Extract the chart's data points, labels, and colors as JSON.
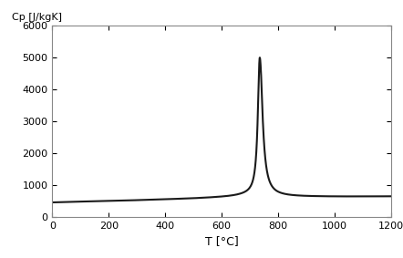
{
  "ylabel": "Cp [J/kgK]",
  "xlabel": "T [°C]",
  "xlim": [
    0,
    1200
  ],
  "ylim": [
    0,
    6000
  ],
  "xticks": [
    0,
    200,
    400,
    600,
    800,
    1000,
    1200
  ],
  "yticks": [
    0,
    1000,
    2000,
    3000,
    4000,
    5000,
    6000
  ],
  "line_color": "#1a1a1a",
  "line_width": 1.5,
  "bg_color": "#ffffff",
  "peak_T": 735,
  "peak_Cp": 5000,
  "base_points_T": [
    0,
    100,
    200,
    300,
    400,
    500,
    600,
    640,
    680,
    700,
    715,
    725,
    730,
    735,
    740,
    745,
    755,
    770,
    800,
    850,
    900,
    1000,
    1100,
    1200
  ],
  "base_points_Cp": [
    450,
    475,
    495,
    520,
    548,
    578,
    622,
    648,
    690,
    720,
    760,
    820,
    900,
    5000,
    950,
    820,
    730,
    685,
    655,
    640,
    635,
    632,
    635,
    640
  ]
}
